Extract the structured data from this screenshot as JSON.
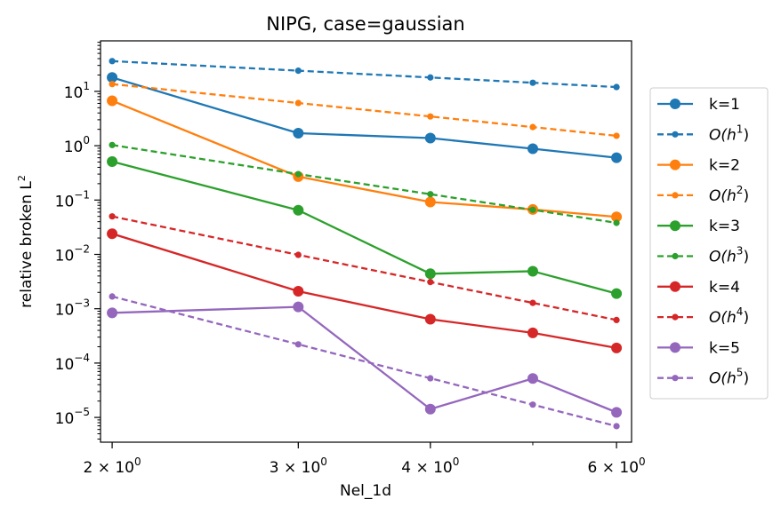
{
  "chart_data": {
    "type": "line",
    "title": "NIPG, case=gaussian",
    "xlabel": "Nel_1d",
    "ylabel": "relative broken L",
    "ylabel_sup": "2",
    "x_scale": "log",
    "y_scale": "log",
    "xlim": [
      1.95,
      6.2
    ],
    "ylim": [
      3.5e-06,
      85
    ],
    "legend_position": "right",
    "x": [
      2,
      3,
      4,
      5,
      6
    ],
    "x_ticks": [
      {
        "value": 2,
        "mant": "2",
        "base": "10",
        "exp": "0"
      },
      {
        "value": 3,
        "mant": "3",
        "base": "10",
        "exp": "0"
      },
      {
        "value": 4,
        "mant": "4",
        "base": "10",
        "exp": "0"
      },
      {
        "value": 6,
        "mant": "6",
        "base": "10",
        "exp": "0"
      }
    ],
    "y_ticks": [
      {
        "value": 1e-05,
        "base": "10",
        "exp": "−5"
      },
      {
        "value": 0.0001,
        "base": "10",
        "exp": "−4"
      },
      {
        "value": 0.001,
        "base": "10",
        "exp": "−3"
      },
      {
        "value": 0.01,
        "base": "10",
        "exp": "−2"
      },
      {
        "value": 0.1,
        "base": "10",
        "exp": "−1"
      },
      {
        "value": 1,
        "base": "10",
        "exp": "0"
      },
      {
        "value": 10,
        "base": "10",
        "exp": "1"
      }
    ],
    "series": [
      {
        "name": "k=1",
        "color": "#1f77b4",
        "style": "solid",
        "values": [
          18,
          1.7,
          1.38,
          0.88,
          0.6
        ]
      },
      {
        "name": "O(h1)",
        "label_main": "O(h",
        "label_sup": "1",
        "label_tail": ")",
        "color": "#1f77b4",
        "style": "dashed",
        "values": [
          36,
          24,
          18,
          14.4,
          12
        ]
      },
      {
        "name": "k=2",
        "color": "#ff7f0e",
        "style": "solid",
        "values": [
          6.7,
          0.27,
          0.092,
          0.067,
          0.049
        ]
      },
      {
        "name": "O(h2)",
        "label_main": "O(h",
        "label_sup": "2",
        "label_tail": ")",
        "color": "#ff7f0e",
        "style": "dashed",
        "values": [
          13.6,
          6.1,
          3.45,
          2.2,
          1.52
        ]
      },
      {
        "name": "k=3",
        "color": "#2ca02c",
        "style": "solid",
        "values": [
          0.51,
          0.065,
          0.0044,
          0.0049,
          0.0019
        ]
      },
      {
        "name": "O(h3)",
        "label_main": "O(h",
        "label_sup": "3",
        "label_tail": ")",
        "color": "#2ca02c",
        "style": "dashed",
        "values": [
          1.03,
          0.3,
          0.128,
          0.066,
          0.038
        ]
      },
      {
        "name": "k=4",
        "color": "#d62728",
        "style": "solid",
        "values": [
          0.024,
          0.0021,
          0.00064,
          0.00036,
          0.00019
        ]
      },
      {
        "name": "O(h4)",
        "label_main": "O(h",
        "label_sup": "4",
        "label_tail": ")",
        "color": "#d62728",
        "style": "dashed",
        "values": [
          0.05,
          0.0098,
          0.0031,
          0.00128,
          0.00062
        ]
      },
      {
        "name": "k=5",
        "color": "#9467bd",
        "style": "solid",
        "values": [
          0.00084,
          0.00108,
          1.42e-05,
          5.2e-05,
          1.24e-05
        ]
      },
      {
        "name": "O(h5)",
        "label_main": "O(h",
        "label_sup": "5",
        "label_tail": ")",
        "color": "#9467bd",
        "style": "dashed",
        "values": [
          0.00168,
          0.000221,
          5.25e-05,
          1.72e-05,
          6.9e-06
        ]
      }
    ]
  }
}
